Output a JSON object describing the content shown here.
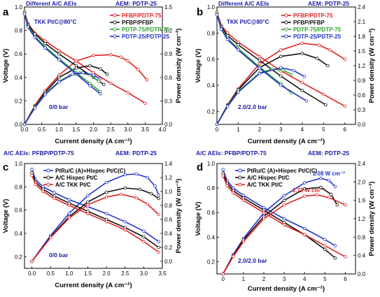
{
  "chart_data": [
    {
      "type": "line",
      "panel_label": "a",
      "header_left": "Different A/C AEIs",
      "header_right": "AEM: PDTP-25",
      "condition": "TKK Pt/C@80°C",
      "pressure": "0/0 bar",
      "xlabel": "Current density (A cm⁻²)",
      "ylabel_left": "Voltage (V)",
      "ylabel_right": "Power density (W cm⁻²)",
      "xlim": [
        0,
        4.0
      ],
      "xticks": [
        "0.0",
        "0.5",
        "1.0",
        "1.5",
        "2.0",
        "2.5",
        "3.0",
        "3.5",
        "4.0"
      ],
      "ylim_left": [
        0,
        1.0
      ],
      "yticks_left": [
        "0.0",
        "0.2",
        "0.4",
        "0.6",
        "0.8",
        "1.0"
      ],
      "ylim_right": [
        0,
        1.5
      ],
      "yticks_right": [
        "0.0",
        "0.3",
        "0.6",
        "0.9",
        "1.2",
        "1.5"
      ],
      "series": [
        {
          "name": "PFBP/PDTP-75",
          "color": "#e02020",
          "marker": "circle",
          "voltage": {
            "x": [
              0,
              0.1,
              0.3,
              0.6,
              1.0,
              1.5,
              2.0,
              2.5,
              3.0,
              3.5
            ],
            "y": [
              0.96,
              0.86,
              0.78,
              0.71,
              0.63,
              0.54,
              0.44,
              0.35,
              0.27,
              0.18
            ]
          },
          "power": {
            "x": [
              0,
              0.3,
              0.6,
              1.0,
              1.5,
              2.0,
              2.5,
              2.8,
              3.0,
              3.3,
              3.55
            ],
            "y": [
              0,
              0.24,
              0.43,
              0.63,
              0.81,
              0.88,
              0.89,
              0.86,
              0.81,
              0.7,
              0.57
            ]
          }
        },
        {
          "name": "PFBP/PFBP",
          "color": "#111111",
          "marker": "circle",
          "voltage": {
            "x": [
              0,
              0.1,
              0.3,
              0.6,
              1.0,
              1.5,
              2.0,
              2.3
            ],
            "y": [
              0.95,
              0.85,
              0.77,
              0.69,
              0.6,
              0.5,
              0.4,
              0.34
            ]
          },
          "power": {
            "x": [
              0,
              0.3,
              0.6,
              1.0,
              1.5,
              1.9,
              2.2,
              2.4
            ],
            "y": [
              0,
              0.23,
              0.41,
              0.6,
              0.72,
              0.75,
              0.71,
              0.64
            ]
          }
        },
        {
          "name": "PDTP-75/PDTP-75",
          "color": "#2ca02c",
          "marker": "circle",
          "voltage": {
            "x": [
              0,
              0.1,
              0.3,
              0.6,
              1.0,
              1.5,
              1.9,
              2.2
            ],
            "y": [
              0.95,
              0.84,
              0.75,
              0.66,
              0.56,
              0.44,
              0.35,
              0.28
            ]
          },
          "power": {
            "x": [
              0,
              0.3,
              0.6,
              1.0,
              1.3,
              1.6,
              1.9,
              2.15
            ],
            "y": [
              0,
              0.22,
              0.39,
              0.55,
              0.62,
              0.66,
              0.63,
              0.55
            ]
          }
        },
        {
          "name": "PDTP-25/PDTP-25",
          "color": "#2233cc",
          "marker": "circle",
          "voltage": {
            "x": [
              0,
              0.1,
              0.3,
              0.6,
              1.0,
              1.5,
              1.9,
              2.2
            ],
            "y": [
              0.94,
              0.83,
              0.74,
              0.65,
              0.55,
              0.43,
              0.33,
              0.26
            ]
          },
          "power": {
            "x": [
              0,
              0.3,
              0.6,
              1.0,
              1.4,
              1.7,
              2.0,
              2.2
            ],
            "y": [
              0,
              0.21,
              0.38,
              0.54,
              0.64,
              0.66,
              0.63,
              0.58
            ]
          }
        }
      ]
    },
    {
      "type": "line",
      "panel_label": "b",
      "header_left": "Different A/C AEIs",
      "header_right": "AEM: PDTP-25",
      "condition": "TKK Pt/C@80°C",
      "pressure": "2.0/2.0 bar",
      "xlabel": "Current density (A cm⁻²)",
      "ylabel_left": "Voltage (V)",
      "ylabel_right": "Power density (W cm⁻²)",
      "xlim": [
        0,
        6.5
      ],
      "xticks": [
        "0",
        "1",
        "2",
        "3",
        "4",
        "5",
        "6"
      ],
      "ylim_left": [
        0.1,
        1.0
      ],
      "yticks_left": [
        "0.2",
        "0.4",
        "0.6",
        "0.8",
        "1.0"
      ],
      "ylim_right": [
        0,
        2.4
      ],
      "yticks_right": [
        "0.0",
        "0.3",
        "0.6",
        "0.9",
        "1.2",
        "1.5",
        "1.8",
        "2.1",
        "2.4"
      ],
      "series": [
        {
          "name": "PFBP/PDTP-75",
          "color": "#e02020",
          "marker": "circle",
          "voltage": {
            "x": [
              0,
              0.2,
              0.5,
              1,
              2,
              3,
              4,
              5,
              6
            ],
            "y": [
              0.96,
              0.86,
              0.8,
              0.73,
              0.62,
              0.51,
              0.42,
              0.33,
              0.24
            ]
          },
          "power": {
            "x": [
              0,
              0.5,
              1,
              2,
              3,
              4,
              4.8,
              5.3,
              6
            ],
            "y": [
              0,
              0.4,
              0.73,
              1.24,
              1.52,
              1.66,
              1.62,
              1.52,
              1.33
            ]
          }
        },
        {
          "name": "PFBP/PFBP",
          "color": "#111111",
          "marker": "circle",
          "voltage": {
            "x": [
              0,
              0.2,
              0.5,
              1,
              2,
              3,
              4,
              5.1
            ],
            "y": [
              0.95,
              0.85,
              0.78,
              0.71,
              0.59,
              0.47,
              0.36,
              0.25
            ]
          },
          "power": {
            "x": [
              0,
              0.5,
              1,
              2,
              3,
              4,
              4.7,
              5.2
            ],
            "y": [
              0,
              0.39,
              0.71,
              1.16,
              1.39,
              1.45,
              1.35,
              1.2
            ]
          }
        },
        {
          "name": "PDTP-75/PDTP-75",
          "color": "#2ca02c",
          "marker": "circle",
          "voltage": {
            "x": [
              0,
              0.2,
              0.5,
              1,
              2,
              3,
              3.5
            ],
            "y": [
              0.95,
              0.84,
              0.76,
              0.68,
              0.54,
              0.41,
              0.34
            ]
          },
          "power": {
            "x": [
              0,
              0.5,
              1,
              2,
              2.6,
              3.1,
              3.5
            ],
            "y": [
              0,
              0.38,
              0.68,
              1.05,
              1.13,
              1.11,
              1.02
            ]
          }
        },
        {
          "name": "PDTP-25/PDTP-25",
          "color": "#2233cc",
          "marker": "circle",
          "voltage": {
            "x": [
              0,
              0.2,
              0.5,
              1,
              2,
              3,
              4.2
            ],
            "y": [
              0.94,
              0.83,
              0.75,
              0.67,
              0.53,
              0.4,
              0.28
            ]
          },
          "power": {
            "x": [
              0,
              0.5,
              1,
              2,
              3,
              3.6,
              4.1
            ],
            "y": [
              0,
              0.37,
              0.66,
              1.04,
              1.16,
              1.1,
              0.98
            ]
          }
        }
      ]
    },
    {
      "type": "line",
      "panel_label": "c",
      "header_left": "A/C AEIs: PFBP/PDTP-75",
      "header_right": "AEM: PDTP-25",
      "pressure": "0/0 bar",
      "xlabel": "Current density (A cm⁻²)",
      "ylabel_left": "Voltage (V)",
      "ylabel_right": "Power density (W cm⁻²)",
      "xlim": [
        -0.2,
        3.5
      ],
      "xticks": [
        "0.0",
        "0.5",
        "1.0",
        "1.5",
        "2.0",
        "2.5",
        "3.0",
        "3.5"
      ],
      "ylim_left": [
        0.1,
        1.0
      ],
      "yticks_left": [
        "0.2",
        "0.4",
        "0.6",
        "0.8",
        "1.0"
      ],
      "ylim_right": [
        -0.1,
        1.4
      ],
      "yticks_right": [
        "0.0",
        "0.2",
        "0.4",
        "0.6",
        "0.8",
        "1.0",
        "1.2",
        "1.4"
      ],
      "series": [
        {
          "name": "PtRu/C (A)+Hispec Pt/C(C)",
          "color": "#2233cc",
          "marker": "circle",
          "voltage": {
            "x": [
              0,
              0.1,
              0.3,
              0.6,
              1.0,
              1.5,
              2.0,
              2.5,
              3.0,
              3.4
            ],
            "y": [
              0.95,
              0.86,
              0.8,
              0.75,
              0.69,
              0.63,
              0.57,
              0.5,
              0.42,
              0.33
            ]
          },
          "power": {
            "x": [
              0,
              0.5,
              1,
              1.5,
              2,
              2.5,
              2.8,
              3.1,
              3.3,
              3.4
            ],
            "y": [
              0,
              0.37,
              0.69,
              0.94,
              1.13,
              1.24,
              1.25,
              1.2,
              1.08,
              0.95
            ]
          }
        },
        {
          "name": "A/C Hispec Pt/C",
          "color": "#111111",
          "marker": "circle",
          "voltage": {
            "x": [
              0,
              0.1,
              0.3,
              0.6,
              1.0,
              1.5,
              2.0,
              2.5,
              3.0,
              3.4
            ],
            "y": [
              0.92,
              0.84,
              0.78,
              0.72,
              0.66,
              0.59,
              0.52,
              0.45,
              0.37,
              0.28
            ]
          },
          "power": {
            "x": [
              0,
              0.5,
              1,
              1.5,
              2,
              2.5,
              2.9,
              3.2,
              3.4
            ],
            "y": [
              0,
              0.35,
              0.64,
              0.85,
              0.99,
              1.05,
              1.03,
              0.97,
              0.9
            ]
          }
        },
        {
          "name": "A/C TKK Pt/C",
          "color": "#e02020",
          "marker": "circle",
          "voltage": {
            "x": [
              0,
              0.1,
              0.3,
              0.6,
              1.0,
              1.5,
              2.0,
              2.5,
              3.0,
              3.4
            ],
            "y": [
              0.9,
              0.82,
              0.76,
              0.7,
              0.64,
              0.57,
              0.5,
              0.43,
              0.33,
              0.24
            ]
          },
          "power": {
            "x": [
              0,
              0.5,
              1,
              1.5,
              2,
              2.4,
              2.8,
              3.1,
              3.4
            ],
            "y": [
              0,
              0.34,
              0.62,
              0.81,
              0.92,
              0.96,
              0.91,
              0.82,
              0.67
            ]
          }
        }
      ]
    },
    {
      "type": "line",
      "panel_label": "d",
      "header_left": "A/C AEIs: PFBP/PDTP-75",
      "header_right": "AEM: PDTP-25",
      "pressure": "2.0/2.0 bar",
      "xlabel": "Current density (A cm⁻²)",
      "ylabel_left": "Voltage (V)",
      "ylabel_right": "Power density (W cm⁻²)",
      "xlim": [
        -0.3,
        6.5
      ],
      "xticks": [
        "0",
        "1",
        "2",
        "3",
        "4",
        "5",
        "6"
      ],
      "ylim_left": [
        0.1,
        1.0
      ],
      "yticks_left": [
        "0.2",
        "0.4",
        "0.6",
        "0.8",
        "1.0"
      ],
      "ylim_right": [
        0,
        2.4
      ],
      "yticks_right": [
        "0.0",
        "0.4",
        "0.8",
        "1.2",
        "1.6",
        "2.0",
        "2.4"
      ],
      "annotations": [
        {
          "text": "2.08 W cm⁻²",
          "color": "#2233cc",
          "x": 4.4,
          "y_right": 2.14
        },
        {
          "text": "1.72 W cm⁻²",
          "color": "#e02020",
          "x": 3.4,
          "y_right": 1.78
        }
      ],
      "series": [
        {
          "name": "PtRu/C (A)+Hispec Pt/C(C)",
          "color": "#2233cc",
          "marker": "circle",
          "voltage": {
            "x": [
              0,
              0.2,
              0.5,
              1,
              2,
              3,
              4,
              5,
              5.5
            ],
            "y": [
              0.95,
              0.86,
              0.8,
              0.74,
              0.64,
              0.55,
              0.47,
              0.38,
              0.33
            ]
          },
          "power": {
            "x": [
              0,
              0.5,
              1,
              2,
              3,
              4,
              4.8,
              5.2,
              5.5
            ],
            "y": [
              0,
              0.42,
              0.77,
              1.33,
              1.7,
              1.98,
              2.08,
              2.03,
              1.9
            ]
          }
        },
        {
          "name": "A/C Hispec Pt/C",
          "color": "#111111",
          "marker": "circle",
          "voltage": {
            "x": [
              0,
              0.2,
              0.5,
              1,
              2,
              3,
              4,
              5,
              5.5
            ],
            "y": [
              0.92,
              0.84,
              0.78,
              0.72,
              0.62,
              0.52,
              0.42,
              0.3,
              0.23
            ]
          },
          "power": {
            "x": [
              0,
              0.5,
              1,
              2,
              3,
              4,
              4.8,
              5.3,
              5.6
            ],
            "y": [
              0,
              0.4,
              0.74,
              1.25,
              1.6,
              1.85,
              1.88,
              1.73,
              1.5
            ]
          }
        },
        {
          "name": "A/C TKK Pt/C",
          "color": "#e02020",
          "marker": "circle",
          "voltage": {
            "x": [
              0,
              0.2,
              0.5,
              1,
              2,
              3,
              4,
              5,
              6
            ],
            "y": [
              0.9,
              0.82,
              0.76,
              0.7,
              0.6,
              0.5,
              0.42,
              0.33,
              0.24
            ]
          },
          "power": {
            "x": [
              0,
              0.5,
              1,
              2,
              3,
              4,
              4.6,
              5.2,
              6
            ],
            "y": [
              0,
              0.38,
              0.7,
              1.2,
              1.5,
              1.69,
              1.72,
              1.66,
              1.5
            ]
          }
        }
      ]
    }
  ]
}
